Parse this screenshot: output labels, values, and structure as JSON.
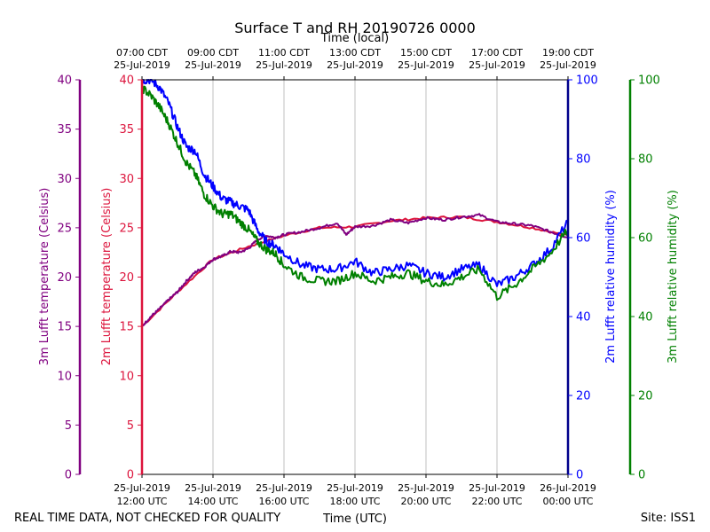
{
  "chart_data": {
    "type": "line",
    "title": "Surface T and RH 20190726 0000",
    "xlabel_top": "Time (local)",
    "xlabel_bottom": "Time (UTC)",
    "footer_left": "REAL TIME DATA, NOT CHECKED FOR QUALITY",
    "footer_right": "Site: ISS1",
    "x_ticks_top": [
      {
        "time": "07:00 CDT",
        "date": "25-Jul-2019"
      },
      {
        "time": "09:00 CDT",
        "date": "25-Jul-2019"
      },
      {
        "time": "11:00 CDT",
        "date": "25-Jul-2019"
      },
      {
        "time": "13:00 CDT",
        "date": "25-Jul-2019"
      },
      {
        "time": "15:00 CDT",
        "date": "25-Jul-2019"
      },
      {
        "time": "17:00 CDT",
        "date": "25-Jul-2019"
      },
      {
        "time": "19:00 CDT",
        "date": "25-Jul-2019"
      }
    ],
    "x_ticks_bottom": [
      {
        "date": "25-Jul-2019",
        "time": "12:00 UTC"
      },
      {
        "date": "25-Jul-2019",
        "time": "14:00 UTC"
      },
      {
        "date": "25-Jul-2019",
        "time": "16:00 UTC"
      },
      {
        "date": "25-Jul-2019",
        "time": "18:00 UTC"
      },
      {
        "date": "25-Jul-2019",
        "time": "20:00 UTC"
      },
      {
        "date": "25-Jul-2019",
        "time": "22:00 UTC"
      },
      {
        "date": "26-Jul-2019",
        "time": "00:00 UTC"
      }
    ],
    "xlim_utc": [
      "2019-07-25 12:00",
      "2019-07-26 00:00"
    ],
    "grid": "vertical",
    "axes": {
      "temp3m": {
        "label": "3m Lufft temperature (Celsius)",
        "ylim": [
          0,
          40
        ],
        "ticks": [
          "0",
          "5",
          "10",
          "15",
          "20",
          "25",
          "30",
          "35",
          "40"
        ],
        "color": "#800080"
      },
      "temp2m": {
        "label": "2m Lufft temperature (Celsius)",
        "ylim": [
          0,
          40
        ],
        "ticks": [
          "0",
          "5",
          "10",
          "15",
          "20",
          "25",
          "30",
          "35",
          "40"
        ],
        "color": "#dc143c"
      },
      "rh2m": {
        "label": "2m Lufft relative humidity (%)",
        "ylim": [
          0,
          100
        ],
        "ticks": [
          "0",
          "20",
          "40",
          "60",
          "80",
          "100"
        ],
        "color": "#0000ff"
      },
      "rh3m": {
        "label": "3m Lufft relative humidity (%)",
        "ylim": [
          0,
          100
        ],
        "ticks": [
          "0",
          "20",
          "40",
          "60",
          "80",
          "100"
        ],
        "color": "#008000"
      }
    },
    "series": [
      {
        "axis": "temp2m",
        "color": "#dc143c",
        "x": [
          "2019-07-25 12:00",
          "2019-07-25 13:00",
          "2019-07-25 14:00",
          "2019-07-25 15:00",
          "2019-07-25 16:00",
          "2019-07-25 17:00",
          "2019-07-25 18:00",
          "2019-07-25 19:00",
          "2019-07-25 20:00",
          "2019-07-25 21:00",
          "2019-07-25 22:00",
          "2019-07-25 23:00",
          "2019-07-26 00:00"
        ],
        "y": [
          15.0,
          18.5,
          21.8,
          23.1,
          24.2,
          25.0,
          25.1,
          25.7,
          26.0,
          26.1,
          25.6,
          25.0,
          24.2
        ]
      },
      {
        "axis": "temp3m",
        "color": "#800080",
        "x": [
          "2019-07-25 12:00",
          "2019-07-25 12:15",
          "2019-07-25 12:30",
          "2019-07-25 12:45",
          "2019-07-25 13:00",
          "2019-07-25 13:15",
          "2019-07-25 13:30",
          "2019-07-25 13:45",
          "2019-07-25 14:00",
          "2019-07-25 14:15",
          "2019-07-25 14:30",
          "2019-07-25 14:45",
          "2019-07-25 15:00",
          "2019-07-25 15:15",
          "2019-07-25 15:30",
          "2019-07-25 15:45",
          "2019-07-25 16:00",
          "2019-07-25 16:30",
          "2019-07-25 17:00",
          "2019-07-25 17:30",
          "2019-07-25 17:45",
          "2019-07-25 18:00",
          "2019-07-25 18:30",
          "2019-07-25 19:00",
          "2019-07-25 19:30",
          "2019-07-25 20:00",
          "2019-07-25 20:30",
          "2019-07-25 21:00",
          "2019-07-25 21:30",
          "2019-07-25 22:00",
          "2019-07-25 22:30",
          "2019-07-25 23:00",
          "2019-07-25 23:30",
          "2019-07-26 00:00"
        ],
        "y": [
          15.0,
          16.0,
          16.8,
          17.7,
          18.5,
          19.6,
          20.5,
          21.0,
          21.8,
          22.1,
          22.6,
          22.5,
          22.9,
          23.8,
          24.2,
          24.0,
          24.3,
          24.6,
          25.0,
          25.5,
          24.3,
          25.1,
          25.2,
          25.8,
          25.5,
          26.0,
          25.8,
          26.1,
          26.3,
          25.6,
          25.4,
          25.2,
          24.6,
          24.0
        ]
      },
      {
        "axis": "rh2m",
        "color": "#0000ff",
        "x": [
          "2019-07-25 12:00",
          "2019-07-25 12:15",
          "2019-07-25 12:30",
          "2019-07-25 12:45",
          "2019-07-25 13:00",
          "2019-07-25 13:15",
          "2019-07-25 13:30",
          "2019-07-25 13:45",
          "2019-07-25 14:00",
          "2019-07-25 14:15",
          "2019-07-25 14:30",
          "2019-07-25 14:45",
          "2019-07-25 15:00",
          "2019-07-25 15:15",
          "2019-07-25 15:30",
          "2019-07-25 15:45",
          "2019-07-25 16:00",
          "2019-07-25 16:30",
          "2019-07-25 17:00",
          "2019-07-25 17:30",
          "2019-07-25 18:00",
          "2019-07-25 18:30",
          "2019-07-25 19:00",
          "2019-07-25 19:30",
          "2019-07-25 20:00",
          "2019-07-25 20:30",
          "2019-07-25 21:00",
          "2019-07-25 21:30",
          "2019-07-25 22:00",
          "2019-07-25 22:30",
          "2019-07-25 23:00",
          "2019-07-25 23:30",
          "2019-07-26 00:00"
        ],
        "y": [
          100,
          100,
          98,
          94,
          88,
          83,
          82,
          76,
          73,
          70,
          69,
          68,
          67,
          62,
          59,
          58,
          56,
          53,
          52,
          52,
          54,
          51,
          52,
          53,
          51,
          50,
          52,
          53,
          48,
          50,
          53,
          57,
          64
        ]
      },
      {
        "axis": "rh3m",
        "color": "#008000",
        "x": [
          "2019-07-25 12:00",
          "2019-07-25 12:15",
          "2019-07-25 12:30",
          "2019-07-25 12:45",
          "2019-07-25 13:00",
          "2019-07-25 13:15",
          "2019-07-25 13:30",
          "2019-07-25 13:45",
          "2019-07-25 14:00",
          "2019-07-25 14:15",
          "2019-07-25 14:30",
          "2019-07-25 14:45",
          "2019-07-25 15:00",
          "2019-07-25 15:15",
          "2019-07-25 15:30",
          "2019-07-25 15:45",
          "2019-07-25 16:00",
          "2019-07-25 16:30",
          "2019-07-25 17:00",
          "2019-07-25 17:30",
          "2019-07-25 18:00",
          "2019-07-25 18:30",
          "2019-07-25 19:00",
          "2019-07-25 19:30",
          "2019-07-25 20:00",
          "2019-07-25 20:30",
          "2019-07-25 21:00",
          "2019-07-25 21:30",
          "2019-07-25 22:00",
          "2019-07-25 22:30",
          "2019-07-25 23:00",
          "2019-07-25 23:30",
          "2019-07-26 00:00"
        ],
        "y": [
          98,
          96,
          93,
          89,
          84,
          79,
          76,
          71,
          68,
          66,
          66,
          64,
          62,
          59,
          57,
          56,
          53,
          50,
          49,
          49,
          51,
          49,
          50,
          51,
          49,
          48,
          50,
          52,
          45,
          48,
          52,
          56,
          62
        ]
      }
    ]
  }
}
